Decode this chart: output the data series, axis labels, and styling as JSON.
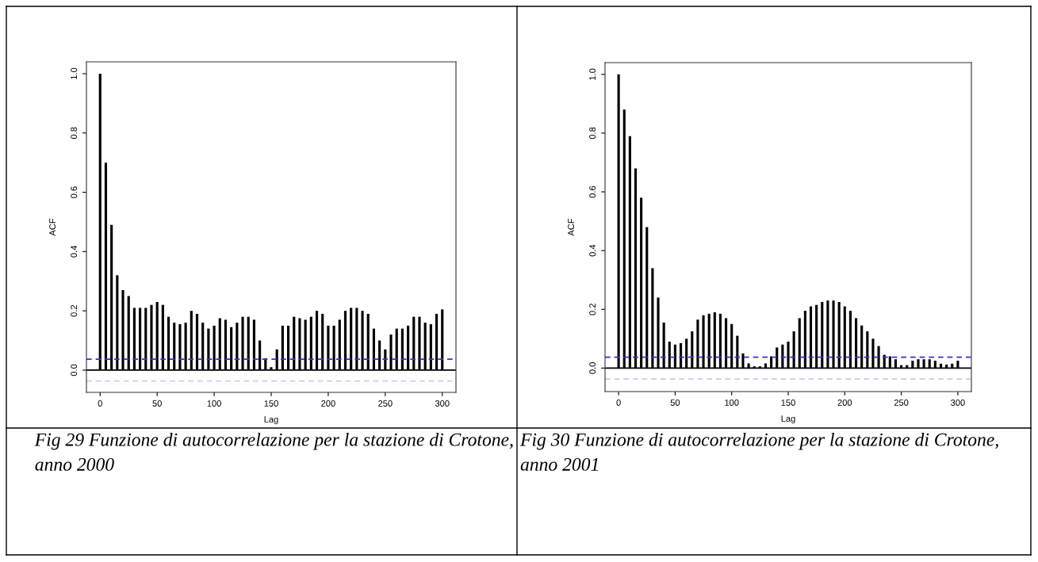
{
  "chart_data": [
    {
      "type": "bar",
      "xlabel": "Lag",
      "ylabel": "ACF",
      "xlim": [
        -12,
        312
      ],
      "ylim": [
        -0.075,
        1.04
      ],
      "xticks": [
        0,
        50,
        100,
        150,
        200,
        250,
        300
      ],
      "yticks": [
        {
          "value": 0,
          "label": "0.0"
        },
        {
          "value": 0.2,
          "label": "0.2"
        },
        {
          "value": 0.4,
          "label": "0.4"
        },
        {
          "value": 0.6,
          "label": "0.6"
        },
        {
          "value": 0.8,
          "label": "0.8"
        },
        {
          "value": 1,
          "label": "1.0"
        }
      ],
      "grid": false,
      "x": [
        0,
        5,
        10,
        15,
        20,
        25,
        30,
        35,
        40,
        45,
        50,
        55,
        60,
        65,
        70,
        75,
        80,
        85,
        90,
        95,
        100,
        105,
        110,
        115,
        120,
        125,
        130,
        135,
        140,
        145,
        150,
        155,
        160,
        165,
        170,
        175,
        180,
        185,
        190,
        195,
        200,
        205,
        210,
        215,
        220,
        225,
        230,
        235,
        240,
        245,
        250,
        255,
        260,
        265,
        270,
        275,
        280,
        285,
        290,
        295,
        300
      ],
      "series": [
        {
          "color": "#000000",
          "values": [
            1.0,
            0.7,
            0.49,
            0.32,
            0.27,
            0.25,
            0.21,
            0.21,
            0.21,
            0.22,
            0.23,
            0.22,
            0.18,
            0.16,
            0.155,
            0.16,
            0.2,
            0.19,
            0.16,
            0.14,
            0.15,
            0.175,
            0.17,
            0.145,
            0.16,
            0.18,
            0.18,
            0.17,
            0.1,
            0.04,
            0.01,
            0.07,
            0.15,
            0.15,
            0.18,
            0.175,
            0.17,
            0.18,
            0.2,
            0.19,
            0.15,
            0.15,
            0.17,
            0.2,
            0.21,
            0.21,
            0.2,
            0.19,
            0.14,
            0.1,
            0.07,
            0.12,
            0.14,
            0.14,
            0.15,
            0.18,
            0.18,
            0.16,
            0.155,
            0.19,
            0.205
          ]
        }
      ],
      "ref_lines": [
        {
          "axis": "y",
          "value": 0,
          "color": "#000000",
          "line_style": "solid"
        },
        {
          "axis": "y",
          "value": 0.037,
          "color": "#3333cc",
          "line_style": "dashed"
        },
        {
          "axis": "y",
          "value": -0.037,
          "color": "#c8c8f0",
          "line_style": "dashed"
        }
      ],
      "annotations": [
        "Fig 29 Funzione di autocorrelazione per la stazione di Crotone, anno 2000"
      ]
    },
    {
      "type": "bar",
      "xlabel": "Lag",
      "ylabel": "ACF",
      "xlim": [
        -12,
        312
      ],
      "ylim": [
        -0.08,
        1.04
      ],
      "xticks": [
        0,
        50,
        100,
        150,
        200,
        250,
        300
      ],
      "yticks": [
        {
          "value": 0,
          "label": "0.0"
        },
        {
          "value": 0.2,
          "label": "0.2"
        },
        {
          "value": 0.4,
          "label": "0.4"
        },
        {
          "value": 0.6,
          "label": "0.6"
        },
        {
          "value": 0.8,
          "label": "0.8"
        },
        {
          "value": 1,
          "label": "1.0"
        }
      ],
      "grid": false,
      "x": [
        0,
        5,
        10,
        15,
        20,
        25,
        30,
        35,
        40,
        45,
        50,
        55,
        60,
        65,
        70,
        75,
        80,
        85,
        90,
        95,
        100,
        105,
        110,
        115,
        120,
        125,
        130,
        135,
        140,
        145,
        150,
        155,
        160,
        165,
        170,
        175,
        180,
        185,
        190,
        195,
        200,
        205,
        210,
        215,
        220,
        225,
        230,
        235,
        240,
        245,
        250,
        255,
        260,
        265,
        270,
        275,
        280,
        285,
        290,
        295,
        300
      ],
      "series": [
        {
          "color": "#000000",
          "values": [
            1.0,
            0.88,
            0.79,
            0.68,
            0.58,
            0.48,
            0.34,
            0.24,
            0.155,
            0.09,
            0.08,
            0.085,
            0.1,
            0.125,
            0.165,
            0.18,
            0.185,
            0.19,
            0.185,
            0.17,
            0.15,
            0.11,
            0.05,
            0.016,
            0.006,
            0.006,
            0.016,
            0.04,
            0.07,
            0.08,
            0.09,
            0.125,
            0.17,
            0.195,
            0.21,
            0.215,
            0.225,
            0.23,
            0.23,
            0.225,
            0.21,
            0.195,
            0.17,
            0.145,
            0.125,
            0.1,
            0.075,
            0.045,
            0.04,
            0.03,
            0.01,
            0.01,
            0.025,
            0.03,
            0.03,
            0.03,
            0.025,
            0.015,
            0.012,
            0.015,
            0.025
          ]
        }
      ],
      "ref_lines": [
        {
          "axis": "y",
          "value": 0,
          "color": "#000000",
          "line_style": "solid"
        },
        {
          "axis": "y",
          "value": 0.037,
          "color": "#3333cc",
          "line_style": "dashed"
        },
        {
          "axis": "y",
          "value": -0.037,
          "color": "#c8c8f0",
          "line_style": "dashed"
        }
      ],
      "annotations": [
        "Fig 30 Funzione di autocorrelazione per la stazione di Crotone, anno 2001"
      ]
    }
  ]
}
